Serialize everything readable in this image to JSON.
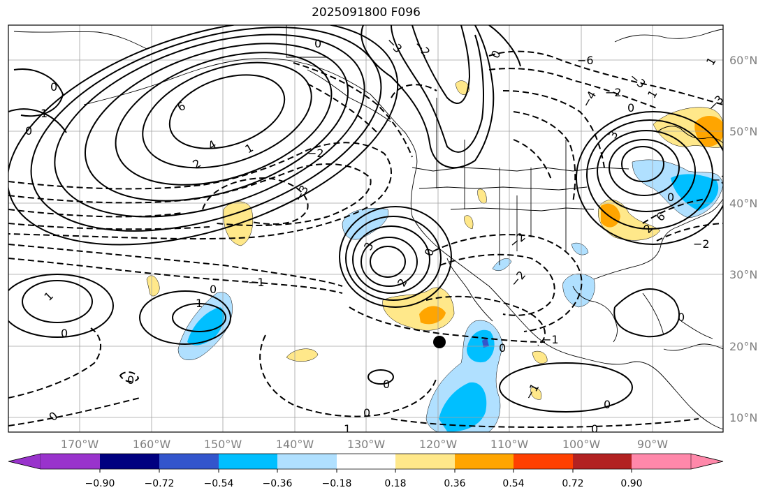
{
  "title": "2025091800 F096",
  "lat_labels": [
    "60°N",
    "50°N",
    "40°N",
    "30°N",
    "20°N",
    "10°N"
  ],
  "lon_labels": [
    "170°W",
    "160°W",
    "150°W",
    "140°W",
    "130°W",
    "120°W",
    "110°W",
    "100°W",
    "90°W"
  ],
  "colorbar": {
    "ticks": [
      "−0.90",
      "−0.72",
      "−0.54",
      "−0.36",
      "−0.18",
      "0.18",
      "0.36",
      "0.54",
      "0.72",
      "0.90"
    ],
    "colors": [
      "#9933cc",
      "#000080",
      "#3355cc",
      "#00bfff",
      "#b0e0ff",
      "#ffffff",
      "#ffe88a",
      "#ffa500",
      "#ff4000",
      "#b22222",
      "#ff88aa"
    ]
  },
  "contour_labels": [
    "0",
    "1",
    "2",
    "3",
    "4",
    "6",
    "−1",
    "−2",
    "−3",
    "−4",
    "−6"
  ],
  "marker": "storm-center"
}
